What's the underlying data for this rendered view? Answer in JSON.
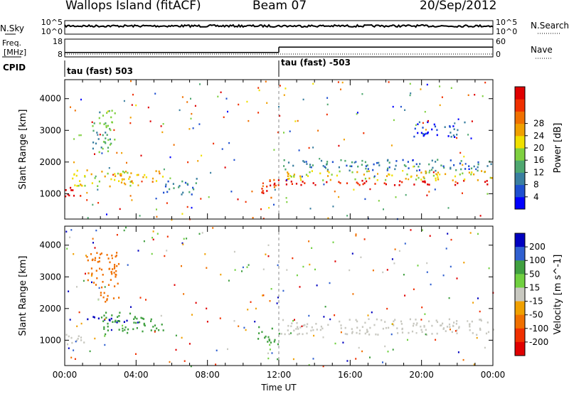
{
  "header": {
    "station": "Wallops Island (fitACF)",
    "beam": "Beam 07",
    "date": "20/Sep/2012"
  },
  "chart_data": [
    {
      "type": "line",
      "name": "noise-panel",
      "left_label": "N.Sky",
      "right_label": "N.Search",
      "left_ticks": [
        "10^5",
        "10^0"
      ],
      "right_ticks": [
        "10^5",
        "10^0"
      ],
      "note": "log scale, near-constant noise ~10^4"
    },
    {
      "type": "line",
      "name": "freq-nave-panel",
      "left_label": "Freq. [MHz]",
      "right_label": "Nave",
      "left_ticks": [
        "18",
        "8"
      ],
      "right_ticks": [
        "60",
        "0"
      ],
      "freq_segments": [
        {
          "t_start": 0,
          "t_end": 12,
          "freq": 10.5
        },
        {
          "t_start": 12,
          "t_end": 24,
          "freq": 13.5
        }
      ]
    },
    {
      "type": "table",
      "name": "cpid-panel",
      "label": "CPID",
      "segments": [
        {
          "t_start": 0,
          "t_end": 12,
          "text": "tau (fast) 503"
        },
        {
          "t_start": 12,
          "t_end": 24,
          "text": "tau (fast) -503"
        }
      ]
    },
    {
      "type": "heatmap",
      "name": "power-panel",
      "ylabel": "Slant Range [km]",
      "yticks": [
        1000,
        2000,
        3000,
        4000
      ],
      "ylim": [
        200,
        4600
      ],
      "xlim": [
        0,
        24
      ],
      "colorbar": {
        "label": "Power [dB]",
        "ticks": [
          "4",
          "8",
          "12",
          "16",
          "20",
          "24",
          "28"
        ],
        "colors": [
          "#0000ff",
          "#1e4fd0",
          "#3a7fa0",
          "#4fa870",
          "#7fd040",
          "#f0e000",
          "#f0a000",
          "#f07000",
          "#f03000",
          "#e00000"
        ]
      },
      "regions": [
        {
          "t": [
            0,
            1.2
          ],
          "r": [
            900,
            1250
          ],
          "level": 9
        },
        {
          "t": [
            0.3,
            3.8
          ],
          "r": [
            1250,
            1800
          ],
          "level": 5
        },
        {
          "t": [
            1.5,
            2.8
          ],
          "r": [
            2300,
            3800
          ],
          "level": 3
        },
        {
          "t": [
            3,
            5.5
          ],
          "r": [
            1400,
            1750
          ],
          "level": 6
        },
        {
          "t": [
            5.5,
            7.5
          ],
          "r": [
            1000,
            1500
          ],
          "level": 2
        },
        {
          "t": [
            10.8,
            12
          ],
          "r": [
            900,
            1500
          ],
          "level": 8
        },
        {
          "t": [
            12,
            24
          ],
          "r": [
            1300,
            1450
          ],
          "level": 9
        },
        {
          "t": [
            12,
            24
          ],
          "r": [
            1450,
            1750
          ],
          "level": 5
        },
        {
          "t": [
            12.2,
            24
          ],
          "r": [
            1750,
            2100
          ],
          "level": 2
        },
        {
          "t": [
            19.5,
            22.5
          ],
          "r": [
            2800,
            3300
          ],
          "level": 1
        }
      ]
    },
    {
      "type": "heatmap",
      "name": "velocity-panel",
      "ylabel": "Slant Range [km]",
      "yticks": [
        1000,
        2000,
        3000,
        4000
      ],
      "ylim": [
        200,
        4600
      ],
      "xlim": [
        0,
        24
      ],
      "xticks": [
        "00:00",
        "04:00",
        "08:00",
        "12:00",
        "16:00",
        "20:00",
        "00:00"
      ],
      "xlabel": "Time UT",
      "colorbar": {
        "label": "Velocity [m s^-1]",
        "ticks": [
          "200",
          "100",
          "50",
          "15",
          "-15",
          "-50",
          "-100",
          "-200"
        ],
        "colors": [
          "#0000c0",
          "#3060d0",
          "#40a040",
          "#70d040",
          "#c8c8c0",
          "#f0a000",
          "#f07000",
          "#f03000",
          "#e00000"
        ]
      },
      "regions": [
        {
          "t": [
            0,
            1.2
          ],
          "r": [
            900,
            1300
          ],
          "color_index": 4
        },
        {
          "t": [
            1.2,
            3.5
          ],
          "r": [
            1550,
            1800
          ],
          "color_index": 0
        },
        {
          "t": [
            2,
            5.5
          ],
          "r": [
            1200,
            1900
          ],
          "color_index": 2
        },
        {
          "t": [
            1.2,
            3
          ],
          "r": [
            2200,
            3800
          ],
          "color_index": 6
        },
        {
          "t": [
            10.8,
            12
          ],
          "r": [
            900,
            1500
          ],
          "color_index": 2
        },
        {
          "t": [
            12,
            24
          ],
          "r": [
            1200,
            1700
          ],
          "color_index": 4
        }
      ]
    }
  ]
}
